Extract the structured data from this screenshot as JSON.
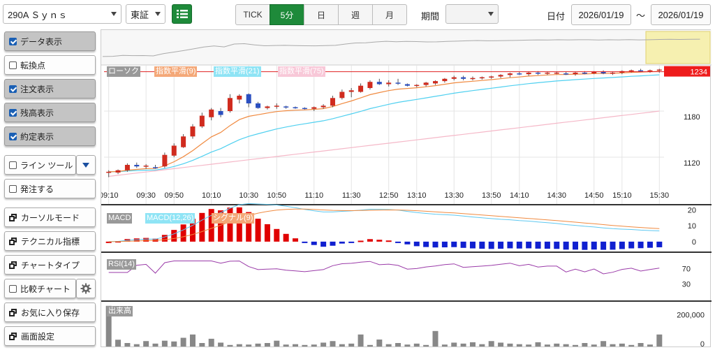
{
  "symbol": {
    "value": "290A Ｓｙｎｓ"
  },
  "market": {
    "value": "東証"
  },
  "interval": {
    "tabs": [
      "TICK",
      "5分",
      "日",
      "週",
      "月"
    ],
    "active": "5分"
  },
  "period": {
    "label": "期間",
    "value": ""
  },
  "date": {
    "label": "日付",
    "from": "2026/01/19",
    "sep": "～",
    "to": "2026/01/19"
  },
  "left_panel": {
    "data_display": "データ表示",
    "turning_point": "転換点",
    "order_display": "注文表示",
    "balance_display": "残高表示",
    "execution_display": "約定表示",
    "line_tool": "ライン ツール",
    "place_order": "発注する",
    "cursor_mode": "カーソルモード",
    "technical": "テクニカル指標",
    "chart_type": "チャートタイプ",
    "compare_chart": "比較チャート",
    "save_favorite": "お気に入り保存",
    "screen_settings": "画面設定"
  },
  "colors": {
    "accent": "#1e8a3a",
    "up": "#d02b1e",
    "down": "#2b4fc0",
    "ema9": "#f08a40",
    "ema21": "#4fd0f0",
    "ema75": "#f5b8c8",
    "price_line": "#e02020",
    "macd": "#5fc8f0",
    "signal": "#f08a40",
    "rsi": "#9a3aa8",
    "volume": "#888888"
  },
  "chart_data": {
    "type": "candlestick",
    "legends": {
      "candles": "ローソク",
      "ema9": "指数平滑(9)",
      "ema21": "指数平滑(21)",
      "ema75": "指数平滑(75)"
    },
    "current_price": "1234",
    "y_ticks": [
      1180,
      1120
    ],
    "ylim": [
      1090,
      1240
    ],
    "x_labels": [
      "09:10",
      "09:30",
      "09:50",
      "10:10",
      "10:30",
      "10:50",
      "11:10",
      "11:30",
      "12:50",
      "13:10",
      "13:30",
      "13:50",
      "14:10",
      "14:30",
      "14:50",
      "15:10",
      "15:30"
    ],
    "candles": [
      [
        1100,
        1103,
        1094,
        1101
      ],
      [
        1100,
        1104,
        1098,
        1103
      ],
      [
        1103,
        1112,
        1101,
        1110
      ],
      [
        1110,
        1113,
        1106,
        1108
      ],
      [
        1108,
        1111,
        1105,
        1109
      ],
      [
        1107,
        1110,
        1105,
        1106
      ],
      [
        1108,
        1126,
        1106,
        1123
      ],
      [
        1122,
        1138,
        1120,
        1135
      ],
      [
        1133,
        1150,
        1132,
        1147
      ],
      [
        1147,
        1163,
        1144,
        1160
      ],
      [
        1160,
        1178,
        1158,
        1174
      ],
      [
        1172,
        1184,
        1168,
        1182
      ],
      [
        1180,
        1184,
        1172,
        1175
      ],
      [
        1180,
        1202,
        1178,
        1197
      ],
      [
        1195,
        1202,
        1190,
        1200
      ],
      [
        1202,
        1203,
        1185,
        1190
      ],
      [
        1190,
        1192,
        1183,
        1184
      ],
      [
        1184,
        1187,
        1182,
        1186
      ],
      [
        1186,
        1190,
        1183,
        1187
      ],
      [
        1186,
        1187,
        1183,
        1185
      ],
      [
        1185,
        1186,
        1183,
        1184
      ],
      [
        1184,
        1185,
        1182,
        1183
      ],
      [
        1183,
        1186,
        1180,
        1185
      ],
      [
        1185,
        1189,
        1183,
        1187
      ],
      [
        1187,
        1200,
        1185,
        1197
      ],
      [
        1197,
        1208,
        1195,
        1205
      ],
      [
        1205,
        1210,
        1198,
        1207
      ],
      [
        1205,
        1216,
        1204,
        1213
      ],
      [
        1210,
        1220,
        1208,
        1218
      ],
      [
        1218,
        1222,
        1214,
        1215
      ],
      [
        1215,
        1220,
        1212,
        1217
      ],
      [
        1217,
        1222,
        1214,
        1216
      ],
      [
        1215,
        1216,
        1212,
        1213
      ],
      [
        1213,
        1215,
        1211,
        1214
      ],
      [
        1214,
        1218,
        1212,
        1217
      ],
      [
        1216,
        1220,
        1214,
        1219
      ],
      [
        1219,
        1223,
        1217,
        1222
      ],
      [
        1222,
        1226,
        1220,
        1224
      ],
      [
        1224,
        1226,
        1220,
        1222
      ],
      [
        1222,
        1225,
        1220,
        1223
      ],
      [
        1223,
        1225,
        1221,
        1224
      ],
      [
        1224,
        1226,
        1222,
        1225
      ],
      [
        1225,
        1228,
        1223,
        1227
      ],
      [
        1227,
        1230,
        1224,
        1229
      ],
      [
        1229,
        1231,
        1227,
        1228
      ],
      [
        1228,
        1231,
        1226,
        1230
      ],
      [
        1230,
        1232,
        1227,
        1229
      ],
      [
        1229,
        1231,
        1227,
        1230
      ],
      [
        1230,
        1231,
        1228,
        1230
      ],
      [
        1229,
        1231,
        1227,
        1228
      ],
      [
        1228,
        1231,
        1226,
        1230
      ],
      [
        1230,
        1232,
        1228,
        1229
      ],
      [
        1229,
        1232,
        1228,
        1231
      ],
      [
        1231,
        1233,
        1228,
        1229
      ],
      [
        1229,
        1231,
        1227,
        1230
      ],
      [
        1230,
        1233,
        1228,
        1232
      ],
      [
        1232,
        1234,
        1230,
        1233
      ],
      [
        1233,
        1235,
        1231,
        1232
      ],
      [
        1232,
        1234,
        1230,
        1233
      ],
      [
        1233,
        1235,
        1230,
        1234
      ]
    ],
    "macd": {
      "legend": "MACD",
      "line_label": "MACD(12,26)",
      "signal_label": "シグナル(9)",
      "y_ticks": [
        20,
        10,
        0
      ],
      "ylim": [
        -4,
        21
      ]
    },
    "rsi": {
      "legend": "RSI(14)",
      "y_ticks": [
        70,
        30
      ],
      "ylim": [
        0,
        100
      ]
    },
    "volume": {
      "legend": "出来高",
      "y_ticks": [
        200000,
        0
      ],
      "y_tick_labels": [
        "200,000",
        "0"
      ],
      "ylim": [
        0,
        220000
      ],
      "values": [
        210000,
        35000,
        18000,
        12000,
        28000,
        15000,
        30000,
        26000,
        45000,
        62000,
        18000,
        40000,
        20000,
        8000,
        12000,
        10000,
        15000,
        18000,
        30000,
        10000,
        12000,
        8000,
        10000,
        20000,
        28000,
        12000,
        15000,
        62000,
        8000,
        36000,
        12000,
        18000,
        10000,
        15000,
        8000,
        80000,
        10000,
        20000,
        15000,
        22000,
        12000,
        28000,
        20000,
        15000,
        12000,
        10000,
        22000,
        10000,
        15000,
        12000,
        8000,
        18000,
        10000,
        28000,
        12000,
        15000,
        8000,
        18000,
        10000,
        62000
      ]
    }
  }
}
